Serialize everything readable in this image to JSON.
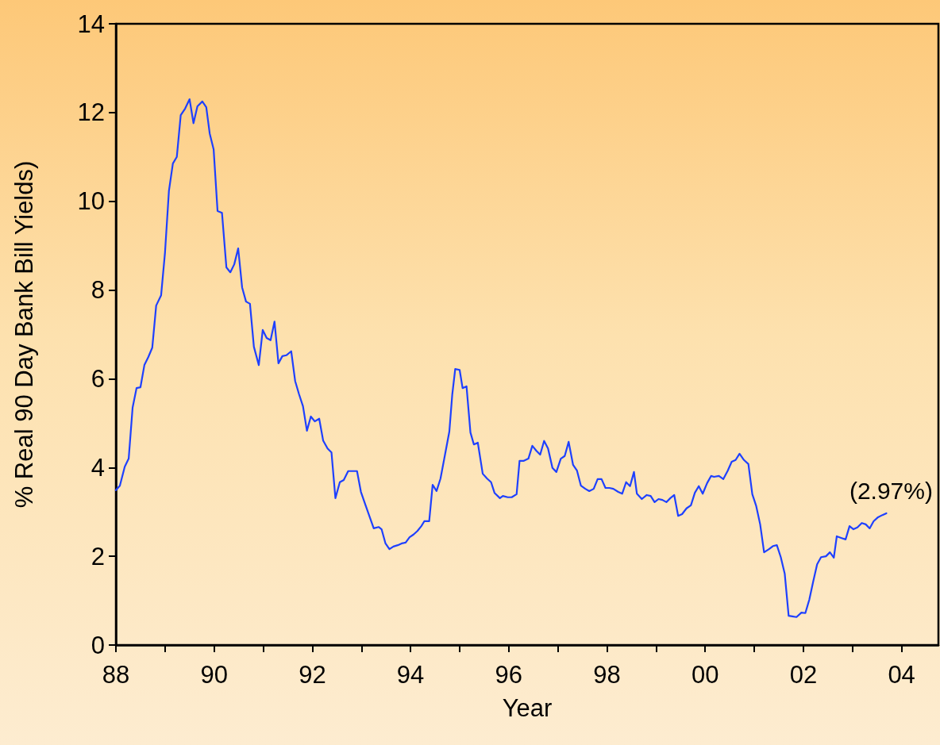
{
  "chart_data": {
    "type": "line",
    "xlabel": "Year",
    "ylabel": "% Real 90 Day Bank Bill Yields)",
    "x": [
      1988,
      1988.08,
      1988.18,
      1988.26,
      1988.34,
      1988.42,
      1988.5,
      1988.58,
      1988.66,
      1988.74,
      1988.82,
      1988.92,
      1989,
      1989.08,
      1989.16,
      1989.24,
      1989.32,
      1989.41,
      1989.5,
      1989.58,
      1989.66,
      1989.76,
      1989.84,
      1989.91,
      1989.99,
      1990.07,
      1990.16,
      1990.25,
      1990.33,
      1990.41,
      1990.49,
      1990.57,
      1990.65,
      1990.73,
      1990.81,
      1990.91,
      1990.99,
      1991.07,
      1991.15,
      1991.23,
      1991.31,
      1991.39,
      1991.47,
      1991.57,
      1991.65,
      1991.73,
      1991.81,
      1991.89,
      1991.97,
      1992.05,
      1992.14,
      1992.22,
      1992.31,
      1992.39,
      1992.47,
      1992.56,
      1992.64,
      1992.73,
      1992.83,
      1992.91,
      1992.99,
      1993.09,
      1993.17,
      1993.25,
      1993.35,
      1993.41,
      1993.49,
      1993.57,
      1993.65,
      1993.74,
      1993.82,
      1993.9,
      1993.98,
      1994.06,
      1994.14,
      1994.22,
      1994.28,
      1994.38,
      1994.45,
      1994.53,
      1994.61,
      1994.69,
      1994.79,
      1994.85,
      1994.91,
      1995,
      1995.06,
      1995.14,
      1995.22,
      1995.29,
      1995.37,
      1995.47,
      1995.56,
      1995.64,
      1995.71,
      1995.82,
      1995.88,
      1995.98,
      1996.06,
      1996.16,
      1996.22,
      1996.3,
      1996.4,
      1996.48,
      1996.56,
      1996.64,
      1996.72,
      1996.8,
      1996.89,
      1996.97,
      1997.06,
      1997.14,
      1997.22,
      1997.31,
      1997.39,
      1997.47,
      1997.56,
      1997.64,
      1997.73,
      1997.81,
      1997.89,
      1997.97,
      1998.05,
      1998.13,
      1998.23,
      1998.31,
      1998.39,
      1998.47,
      1998.55,
      1998.61,
      1998.71,
      1998.81,
      1998.89,
      1998.97,
      1999.05,
      1999.13,
      1999.21,
      1999.29,
      1999.37,
      1999.45,
      1999.53,
      1999.62,
      1999.71,
      1999.79,
      1999.87,
      1999.95,
      2000.04,
      2000.12,
      2000.18,
      2000.28,
      2000.37,
      2000.46,
      2000.54,
      2000.62,
      2000.7,
      2000.79,
      2000.88,
      2000.96,
      2001.04,
      2001.12,
      2001.2,
      2001.3,
      2001.38,
      2001.46,
      2001.54,
      2001.62,
      2001.7,
      2001.8,
      2001.86,
      2001.96,
      2002.04,
      2002.12,
      2002.2,
      2002.28,
      2002.36,
      2002.46,
      2002.54,
      2002.62,
      2002.68,
      2002.78,
      2002.86,
      2002.94,
      2003.02,
      2003.1,
      2003.19,
      2003.27,
      2003.35,
      2003.43,
      2003.52,
      2003.61,
      2003.69
    ],
    "series": [
      {
        "color": "#1e40ff",
        "values": [
          3.49,
          3.59,
          4.02,
          4.2,
          5.35,
          5.79,
          5.81,
          6.31,
          6.49,
          6.7,
          7.65,
          7.88,
          8.85,
          10.24,
          10.85,
          11,
          11.94,
          12.09,
          12.3,
          11.76,
          12.14,
          12.25,
          12.12,
          11.53,
          11.17,
          9.78,
          9.74,
          8.51,
          8.4,
          8.58,
          8.94,
          8.06,
          7.74,
          7.69,
          6.72,
          6.31,
          7.1,
          6.92,
          6.87,
          7.29,
          6.35,
          6.51,
          6.53,
          6.62,
          5.95,
          5.65,
          5.38,
          4.83,
          5.15,
          5.04,
          5.1,
          4.61,
          4.43,
          4.34,
          3.31,
          3.67,
          3.72,
          3.92,
          3.92,
          3.92,
          3.45,
          3.13,
          2.88,
          2.63,
          2.66,
          2.61,
          2.29,
          2.16,
          2.22,
          2.25,
          2.29,
          2.31,
          2.43,
          2.49,
          2.57,
          2.68,
          2.79,
          2.79,
          3.61,
          3.47,
          3.75,
          4.22,
          4.81,
          5.65,
          6.22,
          6.2,
          5.79,
          5.83,
          4.79,
          4.52,
          4.56,
          3.86,
          3.75,
          3.67,
          3.43,
          3.31,
          3.36,
          3.33,
          3.33,
          3.4,
          4.15,
          4.15,
          4.2,
          4.49,
          4.38,
          4.29,
          4.6,
          4.43,
          3.99,
          3.9,
          4.2,
          4.26,
          4.58,
          4.06,
          3.93,
          3.59,
          3.52,
          3.47,
          3.52,
          3.74,
          3.74,
          3.54,
          3.54,
          3.52,
          3.45,
          3.41,
          3.67,
          3.58,
          3.9,
          3.41,
          3.29,
          3.38,
          3.36,
          3.22,
          3.29,
          3.27,
          3.22,
          3.31,
          3.38,
          2.91,
          2.95,
          3.08,
          3.15,
          3.43,
          3.58,
          3.41,
          3.65,
          3.81,
          3.79,
          3.81,
          3.74,
          3.93,
          4.13,
          4.17,
          4.31,
          4.17,
          4.08,
          3.4,
          3.13,
          2.72,
          2.09,
          2.16,
          2.23,
          2.25,
          1.98,
          1.61,
          0.66,
          0.64,
          0.63,
          0.73,
          0.72,
          1.02,
          1.43,
          1.82,
          1.98,
          2,
          2.09,
          1.97,
          2.45,
          2.41,
          2.38,
          2.68,
          2.61,
          2.65,
          2.75,
          2.72,
          2.63,
          2.79,
          2.88,
          2.93,
          2.97
        ]
      }
    ],
    "annotations": [
      {
        "text": "(2.97%)",
        "x": 2003.69,
        "y": 2.97
      }
    ],
    "xlim": [
      1988,
      2004.75
    ],
    "xticks": [
      {
        "value": 1988,
        "label": "88"
      },
      {
        "value": 1989,
        "label": null
      },
      {
        "value": 1990,
        "label": "90"
      },
      {
        "value": 1991,
        "label": null
      },
      {
        "value": 1992,
        "label": "92"
      },
      {
        "value": 1993,
        "label": null
      },
      {
        "value": 1994,
        "label": "94"
      },
      {
        "value": 1995,
        "label": null
      },
      {
        "value": 1996,
        "label": "96"
      },
      {
        "value": 1997,
        "label": null
      },
      {
        "value": 1998,
        "label": "98"
      },
      {
        "value": 1999,
        "label": null
      },
      {
        "value": 2000,
        "label": "00"
      },
      {
        "value": 2001,
        "label": null
      },
      {
        "value": 2002,
        "label": "02"
      },
      {
        "value": 2003,
        "label": null
      },
      {
        "value": 2004,
        "label": "04"
      }
    ],
    "ylim": [
      0,
      14
    ],
    "yticks": [
      0,
      2,
      4,
      6,
      8,
      10,
      12,
      14
    ],
    "grid": false,
    "marker": "none",
    "line_style": "solid"
  }
}
